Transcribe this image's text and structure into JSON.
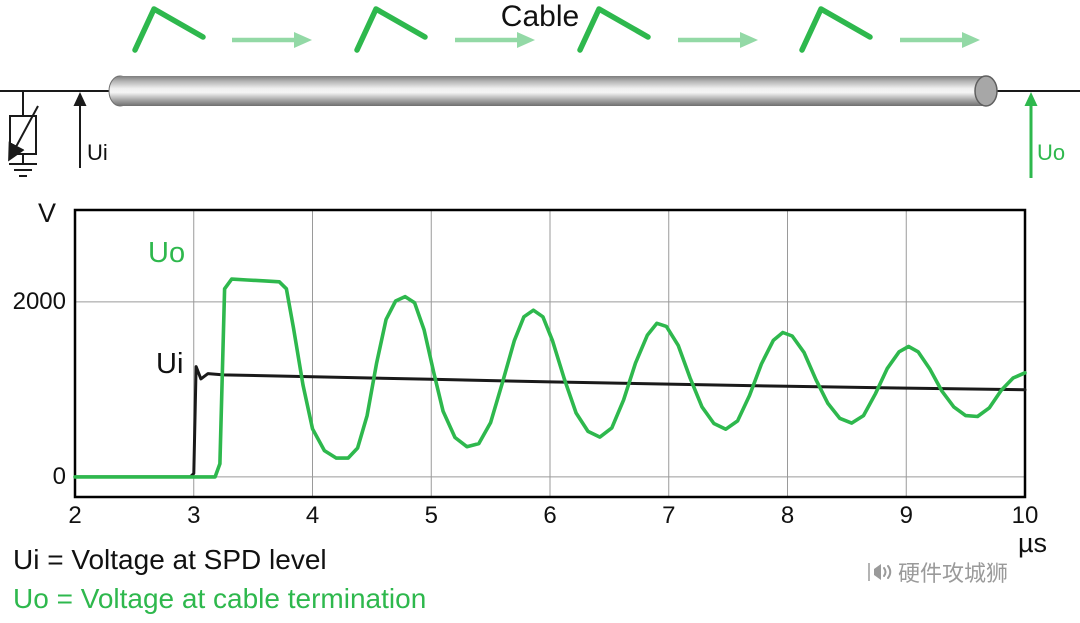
{
  "colors": {
    "green": "#2eb84d",
    "green_light": "#93d9a6"
  },
  "diagram": {
    "cable_label": "Cable",
    "ui_arrow_label": "Ui",
    "uo_arrow_label": "Uo"
  },
  "chart_data": {
    "type": "line",
    "title": "",
    "xlabel": "µs",
    "ylabel": "V",
    "xlim": [
      2,
      10
    ],
    "ylim": [
      -230,
      3050
    ],
    "grid": true,
    "legend_position": "inside-labels",
    "xticks": [
      2,
      3,
      4,
      5,
      6,
      7,
      8,
      9,
      10
    ],
    "yticks": [
      {
        "value": 2000,
        "label": "2000"
      },
      {
        "value": 0,
        "label": "0"
      }
    ],
    "series": [
      {
        "name": "Ui",
        "color": "#1a1a1a",
        "points": [
          [
            2,
            0
          ],
          [
            2.97,
            0
          ],
          [
            3.0,
            40
          ],
          [
            3.02,
            1260
          ],
          [
            3.06,
            1120
          ],
          [
            3.12,
            1180
          ],
          [
            3.25,
            1165
          ],
          [
            4,
            1145
          ],
          [
            5,
            1115
          ],
          [
            6,
            1085
          ],
          [
            7,
            1060
          ],
          [
            8,
            1035
          ],
          [
            9,
            1015
          ],
          [
            10,
            995
          ]
        ]
      },
      {
        "name": "Uo",
        "color": "#2eb84d",
        "points": [
          [
            2,
            0
          ],
          [
            3.18,
            0
          ],
          [
            3.22,
            150
          ],
          [
            3.26,
            2150
          ],
          [
            3.32,
            2260
          ],
          [
            3.45,
            2250
          ],
          [
            3.6,
            2240
          ],
          [
            3.72,
            2230
          ],
          [
            3.78,
            2150
          ],
          [
            3.84,
            1700
          ],
          [
            3.92,
            1050
          ],
          [
            4.0,
            550
          ],
          [
            4.1,
            300
          ],
          [
            4.2,
            215
          ],
          [
            4.3,
            215
          ],
          [
            4.38,
            330
          ],
          [
            4.46,
            700
          ],
          [
            4.54,
            1300
          ],
          [
            4.62,
            1800
          ],
          [
            4.7,
            2010
          ],
          [
            4.78,
            2060
          ],
          [
            4.86,
            1990
          ],
          [
            4.94,
            1680
          ],
          [
            5.02,
            1200
          ],
          [
            5.1,
            750
          ],
          [
            5.2,
            450
          ],
          [
            5.3,
            345
          ],
          [
            5.4,
            380
          ],
          [
            5.5,
            620
          ],
          [
            5.6,
            1080
          ],
          [
            5.7,
            1560
          ],
          [
            5.78,
            1830
          ],
          [
            5.86,
            1905
          ],
          [
            5.94,
            1830
          ],
          [
            6.02,
            1560
          ],
          [
            6.12,
            1120
          ],
          [
            6.22,
            730
          ],
          [
            6.32,
            520
          ],
          [
            6.42,
            455
          ],
          [
            6.52,
            560
          ],
          [
            6.62,
            880
          ],
          [
            6.72,
            1300
          ],
          [
            6.82,
            1620
          ],
          [
            6.9,
            1755
          ],
          [
            6.98,
            1720
          ],
          [
            7.08,
            1500
          ],
          [
            7.18,
            1130
          ],
          [
            7.28,
            800
          ],
          [
            7.38,
            610
          ],
          [
            7.48,
            545
          ],
          [
            7.58,
            640
          ],
          [
            7.68,
            930
          ],
          [
            7.78,
            1290
          ],
          [
            7.88,
            1560
          ],
          [
            7.96,
            1650
          ],
          [
            8.04,
            1610
          ],
          [
            8.14,
            1420
          ],
          [
            8.24,
            1110
          ],
          [
            8.34,
            840
          ],
          [
            8.44,
            670
          ],
          [
            8.54,
            615
          ],
          [
            8.64,
            700
          ],
          [
            8.74,
            950
          ],
          [
            8.84,
            1240
          ],
          [
            8.94,
            1430
          ],
          [
            9.02,
            1490
          ],
          [
            9.1,
            1430
          ],
          [
            9.2,
            1230
          ],
          [
            9.3,
            980
          ],
          [
            9.4,
            800
          ],
          [
            9.5,
            700
          ],
          [
            9.6,
            690
          ],
          [
            9.7,
            790
          ],
          [
            9.8,
            990
          ],
          [
            9.9,
            1130
          ],
          [
            10,
            1190
          ]
        ]
      }
    ]
  },
  "legend": {
    "line1": "Ui  = Voltage at SPD level",
    "line2": "Uo = Voltage at cable termination"
  },
  "watermark": {
    "text": "硬件攻城狮"
  }
}
